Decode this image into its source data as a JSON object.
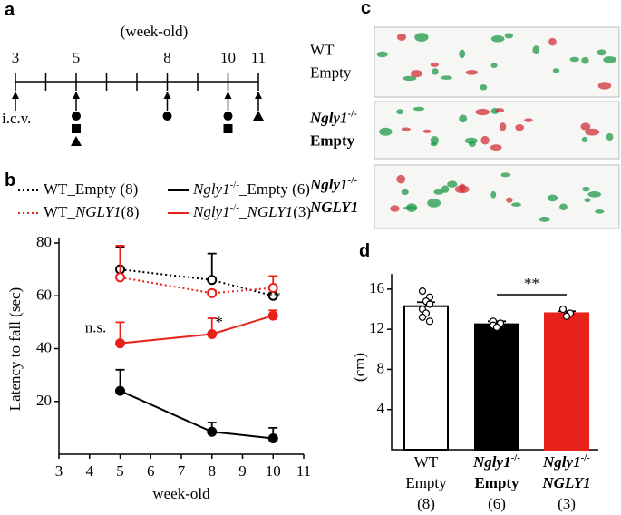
{
  "panel_labels": [
    "a",
    "b",
    "c",
    "d"
  ],
  "timeline": {
    "title": "(week-old)",
    "weeks": [
      3,
      5,
      8,
      10,
      11
    ],
    "start_label": "i.c.v."
  },
  "footprints": {
    "rows": [
      [
        "WT",
        "Empty"
      ],
      [
        "Ngly1-/-",
        "Empty"
      ],
      [
        "Ngly1-/-",
        "NGLY1"
      ]
    ]
  },
  "chart_data": [
    {
      "type": "line",
      "xlabel": "week-old",
      "ylabel": "Latency to fall (sec)",
      "x": [
        5,
        8,
        10
      ],
      "xlim": [
        3,
        11
      ],
      "xticks": [
        3,
        4,
        5,
        6,
        7,
        8,
        9,
        10,
        11
      ],
      "ylim": [
        0,
        80
      ],
      "yticks": [
        20,
        40,
        60,
        80
      ],
      "series": [
        {
          "name": "WT_Empty (8)",
          "color": "#000000",
          "dash": "dotted",
          "marker": "open",
          "values": [
            70,
            66,
            60
          ],
          "errors": [
            8.5,
            10,
            1
          ]
        },
        {
          "name": "Ngly1-/-_Empty (6)",
          "color": "#000000",
          "dash": "solid",
          "marker": "filled",
          "values": [
            24,
            8.5,
            6
          ],
          "errors": [
            8,
            3.5,
            4
          ]
        },
        {
          "name": "WT_NGLY1(8)",
          "color": "#e8211a",
          "dash": "dotted",
          "marker": "open",
          "values": [
            67,
            61,
            63
          ],
          "errors": [
            12,
            1,
            4.5
          ]
        },
        {
          "name": "Ngly1-/-_NGLY1(3)",
          "color": "#e8211a",
          "dash": "solid",
          "marker": "filled",
          "values": [
            42,
            45.5,
            52.5
          ],
          "errors": [
            8,
            6,
            2
          ]
        }
      ],
      "annotations": [
        "n.s.",
        "*",
        "**"
      ]
    },
    {
      "type": "bar",
      "ylabel": "(cm)",
      "categories": [
        [
          "WT",
          "Empty",
          "(8)"
        ],
        [
          "Ngly1-/-",
          "Empty",
          "(6)"
        ],
        [
          "Ngly1-/-",
          "NGLY1",
          "(3)"
        ]
      ],
      "values": [
        14.3,
        12.5,
        13.6
      ],
      "errors": [
        0.4,
        0.3,
        0.2
      ],
      "colors": [
        "#ffffff",
        "#000000",
        "#e8211a"
      ],
      "points": [
        [
          15.8,
          15.2,
          14.8,
          14.5,
          14,
          13.6,
          13.2,
          12.8
        ],
        [
          12.8,
          12.5,
          12.3,
          12.6,
          12.4,
          12.2
        ],
        [
          14,
          13.6,
          13.3
        ]
      ],
      "ylim": [
        0,
        17.5
      ],
      "yticks": [
        4,
        8,
        12,
        16
      ],
      "significance": "**"
    }
  ]
}
